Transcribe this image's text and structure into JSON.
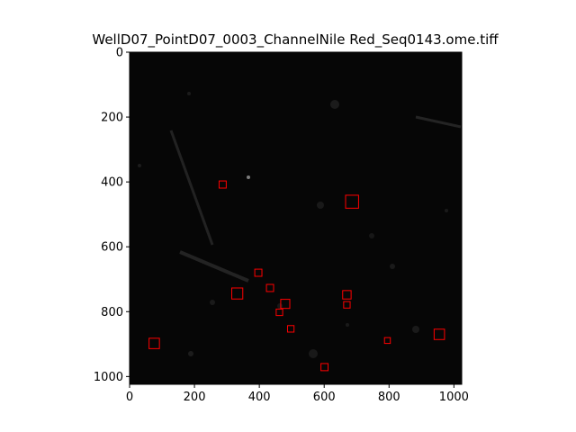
{
  "figure": {
    "title": "WellD07_PointD07_0003_ChannelNile Red_Seq0143.ome.tiff"
  },
  "chart_data": {
    "type": "image",
    "title": "WellD07_PointD07_0003_ChannelNile Red_Seq0143.ome.tiff",
    "xlabel": "",
    "ylabel": "",
    "xlim": [
      0,
      1024
    ],
    "ylim": [
      1024,
      0
    ],
    "xticks": [
      "0",
      "200",
      "400",
      "600",
      "800",
      "1000"
    ],
    "yticks": [
      "0",
      "200",
      "400",
      "600",
      "800",
      "1000"
    ],
    "colormap": "gray",
    "box_color": "#ff0000",
    "detections": [
      {
        "x": 287,
        "y": 408,
        "size": 22
      },
      {
        "x": 686,
        "y": 461,
        "size": 40
      },
      {
        "x": 397,
        "y": 680,
        "size": 22
      },
      {
        "x": 433,
        "y": 727,
        "size": 22
      },
      {
        "x": 332,
        "y": 744,
        "size": 34
      },
      {
        "x": 670,
        "y": 748,
        "size": 26
      },
      {
        "x": 480,
        "y": 776,
        "size": 28
      },
      {
        "x": 670,
        "y": 779,
        "size": 20
      },
      {
        "x": 462,
        "y": 802,
        "size": 20
      },
      {
        "x": 497,
        "y": 853,
        "size": 20
      },
      {
        "x": 795,
        "y": 889,
        "size": 18
      },
      {
        "x": 955,
        "y": 870,
        "size": 32
      },
      {
        "x": 76,
        "y": 898,
        "size": 32
      },
      {
        "x": 601,
        "y": 971,
        "size": 22
      }
    ]
  }
}
